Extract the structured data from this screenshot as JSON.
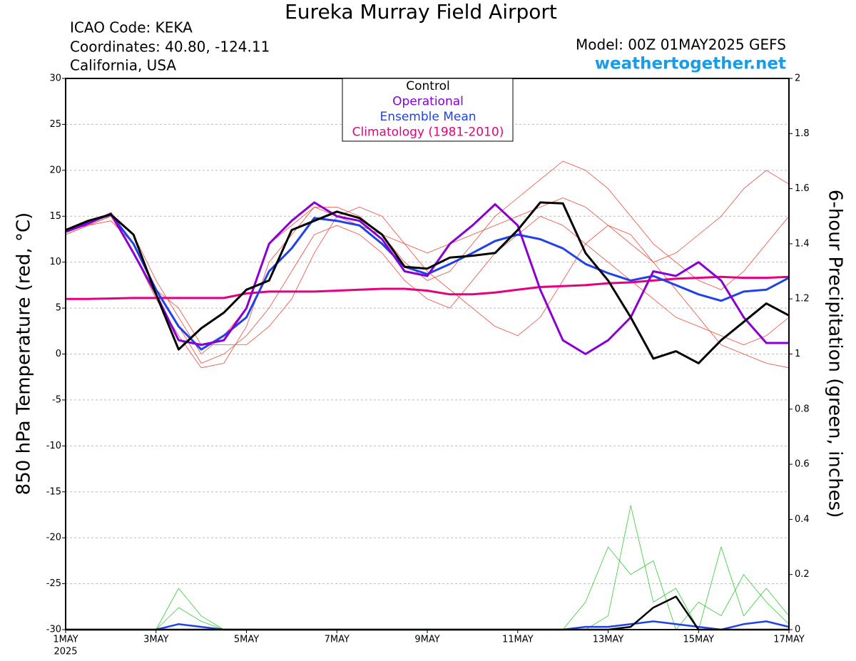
{
  "chart_data": {
    "type": "line",
    "title": "Eureka Murray Field Airport",
    "info": [
      "ICAO Code: KEKA",
      "Coordinates: 40.80, -124.11",
      "California, USA"
    ],
    "model": "Model: 00Z 01MAY2025 GEFS",
    "source": "weathertogether.net",
    "ylabel": "850 hPa Temperature (red, °C)",
    "y2label": "6-hour Precipitation (green, inches)",
    "year_label": "2025",
    "x": [
      0,
      0.5,
      1,
      1.5,
      2,
      2.5,
      3,
      3.5,
      4,
      4.5,
      5,
      5.5,
      6,
      6.5,
      7,
      7.5,
      8,
      8.5,
      9,
      9.5,
      10,
      10.5,
      11,
      11.5,
      12,
      12.5,
      13,
      13.5,
      14,
      14.5,
      15,
      15.5,
      16
    ],
    "xlim": [
      0,
      16
    ],
    "xticks": [
      {
        "value": 0,
        "label": "1MAY"
      },
      {
        "value": 2,
        "label": "3MAY"
      },
      {
        "value": 4,
        "label": "5MAY"
      },
      {
        "value": 6,
        "label": "7MAY"
      },
      {
        "value": 8,
        "label": "9MAY"
      },
      {
        "value": 10,
        "label": "11MAY"
      },
      {
        "value": 12,
        "label": "13MAY"
      },
      {
        "value": 14,
        "label": "15MAY"
      },
      {
        "value": 16,
        "label": "17MAY"
      }
    ],
    "ylim": [
      -30,
      30
    ],
    "yticks": [
      30,
      25,
      20,
      15,
      10,
      5,
      0,
      -5,
      -10,
      -15,
      -20,
      -25,
      -30
    ],
    "y2lim": [
      0,
      2
    ],
    "y2ticks": [
      2,
      1.8,
      1.6,
      1.4,
      1.2,
      1,
      0.8,
      0.6,
      0.4,
      0.2,
      0
    ],
    "grid": true,
    "series": [
      {
        "name": "Control",
        "color": "#000000",
        "values": [
          13.5,
          14.5,
          15.2,
          13,
          6.5,
          0.5,
          2.8,
          4.5,
          7,
          8,
          13.5,
          14.5,
          15.5,
          14.8,
          13,
          9.5,
          9.3,
          10.5,
          10.7,
          11,
          13.5,
          16.5,
          16.4,
          11,
          8,
          4,
          -0.5,
          0.3,
          -1,
          1.5,
          3.5,
          5.5,
          4.2
        ]
      },
      {
        "name": "Operational",
        "color": "#8a00d4",
        "values": [
          13.3,
          14.2,
          15.3,
          11,
          6.5,
          1.5,
          1,
          1.5,
          5,
          12,
          14.5,
          16.5,
          15,
          14.5,
          12.5,
          9,
          8.5,
          12,
          14,
          16.3,
          14,
          7,
          1.5,
          0,
          1.5,
          4,
          9,
          8.5,
          10,
          8,
          4,
          1.2,
          1.2
        ]
      },
      {
        "name": "Ensemble Mean",
        "color": "#2142e8",
        "values": [
          13.5,
          14.3,
          15.2,
          12,
          7,
          3,
          0.5,
          2,
          4,
          9,
          11.5,
          14.8,
          14.5,
          14,
          12,
          9.5,
          8.7,
          9.8,
          11,
          12.3,
          13,
          12.5,
          11.5,
          9.8,
          8.8,
          8,
          8.5,
          7.5,
          6.5,
          5.8,
          6.8,
          7,
          8.3
        ]
      },
      {
        "name": "Climatology (1981-2010)",
        "color": "#e6007e",
        "values": [
          6,
          6,
          6.05,
          6.1,
          6.1,
          6.1,
          6.1,
          6.1,
          6.6,
          6.8,
          6.8,
          6.8,
          6.9,
          7,
          7.1,
          7.1,
          6.9,
          6.5,
          6.5,
          6.7,
          7,
          7.3,
          7.4,
          7.5,
          7.7,
          7.8,
          8,
          8.2,
          8.3,
          8.4,
          8.3,
          8.3,
          8.4
        ]
      },
      {
        "color": "#000000",
        "axis": "y2",
        "values": [
          0,
          0,
          0,
          0,
          0,
          0,
          0,
          0,
          0,
          0,
          0,
          0,
          0,
          0,
          0,
          0,
          0,
          0,
          0,
          0,
          0,
          0,
          0,
          0,
          0,
          0.01,
          0.08,
          0.12,
          0,
          0,
          0,
          0,
          0
        ]
      },
      {
        "color": "#2142e8",
        "axis": "y2",
        "values": [
          0,
          0,
          0,
          0,
          0,
          0.02,
          0.01,
          0,
          0,
          0,
          0,
          0,
          0,
          0,
          0,
          0,
          0,
          0,
          0,
          0,
          0,
          0,
          0,
          0.01,
          0.01,
          0.02,
          0.03,
          0.02,
          0.01,
          0,
          0.02,
          0.03,
          0.01
        ]
      },
      {
        "color": "#33cc33",
        "axis": "y2",
        "values": [
          0,
          0,
          0,
          0,
          0,
          0.08,
          0.03,
          0,
          0,
          0,
          0,
          0,
          0,
          0,
          0,
          0,
          0,
          0,
          0,
          0,
          0,
          0,
          0,
          0,
          0.05,
          0.45,
          0.1,
          0.15,
          0,
          0.3,
          0.05,
          0.15,
          0.05
        ]
      },
      {
        "color": "#33cc33",
        "axis": "y2",
        "values": [
          0,
          0,
          0,
          0,
          0,
          0.15,
          0.05,
          0,
          0,
          0,
          0,
          0,
          0,
          0,
          0,
          0,
          0,
          0,
          0,
          0,
          0,
          0,
          0,
          0.1,
          0.3,
          0.2,
          0.25,
          0,
          0.1,
          0.05,
          0.2,
          0.1,
          0.02
        ]
      },
      {
        "color": "#f04a3a",
        "values": [
          13,
          14,
          15,
          12,
          7,
          3,
          -1,
          0,
          2,
          5,
          9,
          13,
          14,
          13,
          11,
          8,
          6,
          5,
          8,
          11,
          13,
          15,
          14,
          12,
          10,
          8,
          6,
          4,
          3,
          2,
          1,
          2,
          4
        ]
      },
      {
        "color": "#f04a3a",
        "values": [
          13.5,
          14.5,
          15,
          11,
          6,
          2,
          -1.5,
          -1,
          3,
          10,
          13,
          16,
          16,
          15,
          13,
          10,
          8,
          9,
          12,
          15,
          17,
          19,
          21,
          20,
          18,
          15,
          12,
          10,
          8,
          7,
          9,
          12,
          15
        ]
      },
      {
        "color": "#f04a3a",
        "values": [
          13,
          14,
          14.5,
          12,
          7,
          5,
          1,
          1,
          1,
          3,
          6,
          11,
          15,
          16,
          15,
          12,
          9,
          7,
          5,
          3,
          2,
          4,
          8,
          12,
          14,
          13,
          10,
          7,
          4,
          1,
          0,
          -1,
          -1.5
        ]
      },
      {
        "color": "#f04a3a",
        "values": [
          13.5,
          14,
          15,
          13,
          8,
          4,
          0,
          2,
          5,
          12,
          14,
          16,
          15,
          14,
          13,
          12,
          11,
          12,
          13,
          14,
          15,
          16,
          17,
          16,
          14,
          12,
          10,
          11,
          13,
          15,
          18,
          20,
          18.5
        ]
      }
    ]
  }
}
